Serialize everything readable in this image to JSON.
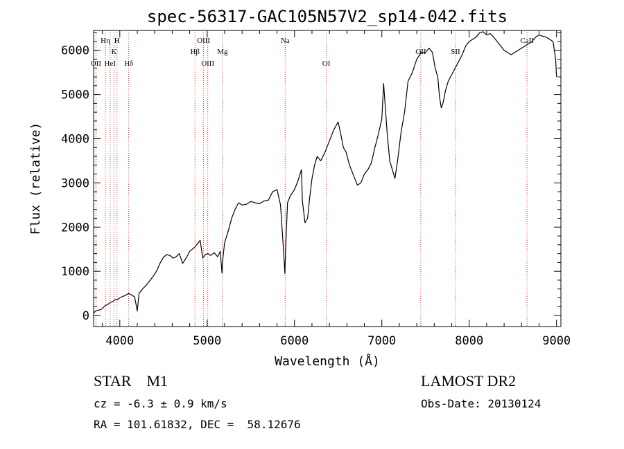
{
  "chart_data": {
    "type": "line",
    "title": "spec-56317-GAC105N57V2_sp14-042.fits",
    "xlabel": "Wavelength (Å)",
    "ylabel": "Flux (relative)",
    "xlim": [
      3700,
      9050
    ],
    "ylim": [
      -250,
      6450
    ],
    "xticks": [
      "4000",
      "5000",
      "6000",
      "7000",
      "8000",
      "9000"
    ],
    "yticks": [
      "0",
      "1000",
      "2000",
      "3000",
      "4000",
      "5000",
      "6000"
    ],
    "grid": false,
    "series": [
      {
        "x": [
          3700,
          3720,
          3750,
          3780,
          3800,
          3830,
          3860,
          3890,
          3920,
          3950,
          3980,
          4000,
          4030,
          4060,
          4100,
          4130,
          4170,
          4200,
          4220,
          4260,
          4300,
          4340,
          4380,
          4420,
          4460,
          4500,
          4540,
          4580,
          4610,
          4640,
          4680,
          4720,
          4760,
          4800,
          4830,
          4860,
          4890,
          4920,
          4950,
          4980,
          5010,
          5040,
          5080,
          5120,
          5150,
          5170,
          5180,
          5200,
          5240,
          5280,
          5320,
          5360,
          5400,
          5450,
          5500,
          5550,
          5600,
          5650,
          5700,
          5750,
          5800,
          5840,
          5870,
          5890,
          5900,
          5920,
          5950,
          6000,
          6040,
          6080,
          6090,
          6120,
          6150,
          6170,
          6200,
          6230,
          6260,
          6300,
          6350,
          6400,
          6450,
          6500,
          6530,
          6560,
          6590,
          6630,
          6680,
          6720,
          6760,
          6800,
          6840,
          6880,
          6920,
          6960,
          7000,
          7020,
          7040,
          7060,
          7090,
          7120,
          7150,
          7180,
          7220,
          7260,
          7300,
          7350,
          7400,
          7450,
          7500,
          7540,
          7580,
          7610,
          7640,
          7660,
          7680,
          7700,
          7730,
          7760,
          7800,
          7840,
          7880,
          7920,
          7960,
          8000,
          8040,
          8080,
          8120,
          8160,
          8200,
          8240,
          8280,
          8320,
          8360,
          8400,
          8440,
          8480,
          8520,
          8560,
          8600,
          8640,
          8680,
          8720,
          8760,
          8800,
          8840,
          8880,
          8920,
          8960,
          8990,
          9000
        ],
        "y": [
          50,
          100,
          120,
          130,
          160,
          220,
          250,
          290,
          320,
          360,
          370,
          400,
          430,
          450,
          500,
          470,
          420,
          100,
          500,
          600,
          680,
          780,
          880,
          1000,
          1180,
          1320,
          1380,
          1350,
          1300,
          1320,
          1400,
          1180,
          1300,
          1450,
          1500,
          1550,
          1620,
          1700,
          1300,
          1380,
          1400,
          1360,
          1420,
          1330,
          1450,
          960,
          1300,
          1650,
          1900,
          2200,
          2400,
          2550,
          2500,
          2520,
          2580,
          2550,
          2530,
          2590,
          2610,
          2800,
          2850,
          2500,
          1600,
          950,
          1600,
          2550,
          2700,
          2850,
          3050,
          3300,
          2600,
          2100,
          2200,
          2600,
          3100,
          3400,
          3600,
          3500,
          3700,
          3950,
          4200,
          4380,
          4100,
          3800,
          3700,
          3400,
          3150,
          2950,
          3000,
          3200,
          3300,
          3450,
          3800,
          4100,
          4450,
          5250,
          4700,
          4150,
          3500,
          3300,
          3100,
          3500,
          4150,
          4600,
          5300,
          5500,
          5800,
          5950,
          5950,
          6050,
          5950,
          5600,
          5400,
          4950,
          4700,
          4800,
          5100,
          5300,
          5450,
          5600,
          5750,
          5900,
          6100,
          6200,
          6250,
          6300,
          6400,
          6420,
          6350,
          6380,
          6300,
          6200,
          6100,
          6000,
          5950,
          5900,
          5950,
          6000,
          6050,
          6100,
          6150,
          6200,
          6300,
          6350,
          6320,
          6300,
          6250,
          6200,
          5800,
          5400
        ]
      }
    ],
    "lines": [
      {
        "x": 3727,
        "label": "OII",
        "row": 3
      },
      {
        "x": 3835,
        "label": "Hη",
        "row": 1
      },
      {
        "x": 3889,
        "label": "HeI",
        "row": 3
      },
      {
        "x": 3934,
        "label": "K",
        "row": 2
      },
      {
        "x": 3968,
        "label": "H",
        "row": 1
      },
      {
        "x": 4102,
        "label": "Hδ",
        "row": 3
      },
      {
        "x": 4861,
        "label": "Hβ",
        "row": 2
      },
      {
        "x": 4959,
        "label": "OIII",
        "row": 1
      },
      {
        "x": 5007,
        "label": "OIII",
        "row": 3
      },
      {
        "x": 5175,
        "label": "Mg",
        "row": 2
      },
      {
        "x": 5893,
        "label": "Na",
        "row": 1
      },
      {
        "x": 6364,
        "label": "OI",
        "row": 3
      },
      {
        "x": 7446,
        "label": "OII",
        "row": 2
      },
      {
        "x": 7843,
        "label": "SII",
        "row": 2
      },
      {
        "x": 8662,
        "label": "CaII",
        "row": 1
      }
    ]
  },
  "footer": {
    "object_class": "STAR    M1",
    "survey": "LAMOST DR2",
    "velocity": "cz = -6.3 ± 0.9 km/s",
    "obs_date": "Obs-Date: 20130124",
    "coords": "RA = 101.61832, DEC =  58.12676"
  }
}
